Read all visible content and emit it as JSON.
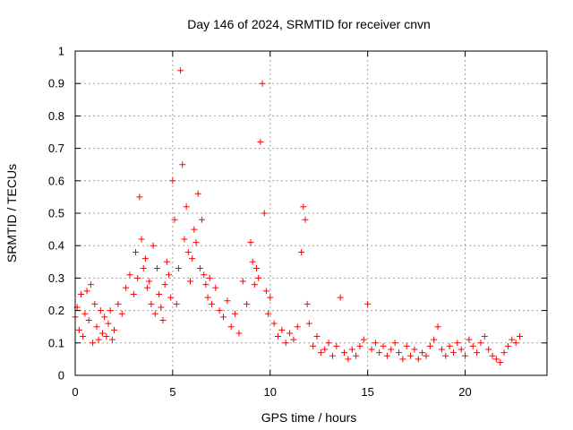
{
  "chart_data": {
    "type": "scatter",
    "title": "Day 146 of 2024, SRMTID for receiver cnvn",
    "xlabel": "GPS time / hours",
    "ylabel": "SRMTID / TECUs",
    "xlim": [
      0,
      24.2
    ],
    "ylim": [
      0,
      1
    ],
    "xticks": [
      0,
      5,
      10,
      15,
      20
    ],
    "yticks": [
      0,
      0.1,
      0.2,
      0.3,
      0.4,
      0.5,
      0.6,
      0.7,
      0.8,
      0.9,
      1
    ],
    "xtick_labels": [
      "0",
      "5",
      "10",
      "15",
      "20"
    ],
    "ytick_labels": [
      "0",
      "0.1",
      "0.2",
      "0.3",
      "0.4",
      "0.5",
      "0.6",
      "0.7",
      "0.8",
      "0.9",
      "1"
    ],
    "grid": true,
    "marker": "plus",
    "marker_color": "#ff0000",
    "series": [
      {
        "name": "SRMTID",
        "x": [
          0.0,
          0.1,
          0.2,
          0.3,
          0.4,
          0.5,
          0.6,
          0.7,
          0.8,
          0.9,
          1.0,
          1.1,
          1.2,
          1.3,
          1.4,
          1.5,
          1.6,
          1.7,
          1.8,
          1.9,
          2.0,
          2.2,
          2.4,
          2.6,
          2.8,
          3.0,
          3.1,
          3.2,
          3.3,
          3.4,
          3.5,
          3.6,
          3.7,
          3.8,
          3.9,
          4.0,
          4.1,
          4.2,
          4.3,
          4.4,
          4.5,
          4.6,
          4.7,
          4.8,
          4.9,
          5.0,
          5.1,
          5.2,
          5.3,
          5.4,
          5.5,
          5.6,
          5.7,
          5.8,
          5.9,
          6.0,
          6.1,
          6.2,
          6.3,
          6.4,
          6.5,
          6.6,
          6.7,
          6.8,
          6.9,
          7.0,
          7.2,
          7.4,
          7.6,
          7.8,
          8.0,
          8.2,
          8.4,
          8.6,
          8.8,
          9.0,
          9.1,
          9.2,
          9.3,
          9.4,
          9.5,
          9.6,
          9.7,
          9.8,
          9.9,
          10.0,
          10.2,
          10.4,
          10.6,
          10.8,
          11.0,
          11.2,
          11.4,
          11.6,
          11.7,
          11.8,
          11.9,
          12.0,
          12.2,
          12.4,
          12.6,
          12.8,
          13.0,
          13.2,
          13.4,
          13.6,
          13.8,
          14.0,
          14.2,
          14.4,
          14.6,
          14.8,
          15.0,
          15.2,
          15.4,
          15.6,
          15.8,
          16.0,
          16.2,
          16.4,
          16.6,
          16.8,
          17.0,
          17.2,
          17.4,
          17.6,
          17.8,
          18.0,
          18.2,
          18.4,
          18.6,
          18.8,
          19.0,
          19.2,
          19.4,
          19.6,
          19.8,
          20.0,
          20.2,
          20.4,
          20.6,
          20.8,
          21.0,
          21.2,
          21.4,
          21.6,
          21.8,
          22.0,
          22.2,
          22.4,
          22.6,
          22.8
        ],
        "y": [
          0.18,
          0.21,
          0.14,
          0.25,
          0.12,
          0.19,
          0.26,
          0.17,
          0.28,
          0.1,
          0.22,
          0.15,
          0.11,
          0.2,
          0.13,
          0.18,
          0.12,
          0.16,
          0.2,
          0.11,
          0.14,
          0.22,
          0.19,
          0.27,
          0.31,
          0.25,
          0.38,
          0.3,
          0.55,
          0.42,
          0.33,
          0.36,
          0.27,
          0.29,
          0.22,
          0.4,
          0.19,
          0.33,
          0.25,
          0.21,
          0.17,
          0.28,
          0.35,
          0.31,
          0.24,
          0.6,
          0.48,
          0.22,
          0.33,
          0.94,
          0.65,
          0.42,
          0.52,
          0.38,
          0.29,
          0.36,
          0.45,
          0.41,
          0.56,
          0.33,
          0.48,
          0.31,
          0.28,
          0.24,
          0.3,
          0.22,
          0.27,
          0.2,
          0.18,
          0.23,
          0.15,
          0.19,
          0.13,
          0.29,
          0.22,
          0.41,
          0.35,
          0.28,
          0.33,
          0.3,
          0.72,
          0.9,
          0.5,
          0.26,
          0.19,
          0.24,
          0.16,
          0.12,
          0.14,
          0.1,
          0.13,
          0.11,
          0.15,
          0.38,
          0.52,
          0.48,
          0.22,
          0.16,
          0.09,
          0.12,
          0.07,
          0.08,
          0.1,
          0.06,
          0.09,
          0.24,
          0.07,
          0.05,
          0.08,
          0.06,
          0.09,
          0.11,
          0.22,
          0.08,
          0.1,
          0.07,
          0.09,
          0.06,
          0.08,
          0.1,
          0.07,
          0.05,
          0.09,
          0.06,
          0.08,
          0.05,
          0.07,
          0.06,
          0.09,
          0.11,
          0.15,
          0.08,
          0.06,
          0.09,
          0.07,
          0.1,
          0.08,
          0.06,
          0.11,
          0.09,
          0.07,
          0.1,
          0.12,
          0.08,
          0.06,
          0.05,
          0.04,
          0.07,
          0.09,
          0.11,
          0.1,
          0.12
        ]
      }
    ]
  }
}
